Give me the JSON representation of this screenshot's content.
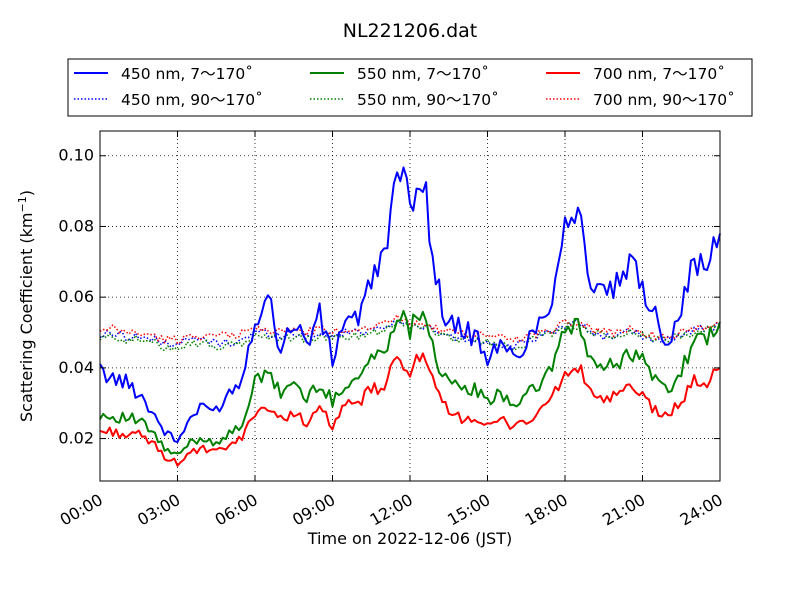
{
  "chart_data": {
    "type": "line",
    "title": "NL221206.dat",
    "xlabel": "Time on 2022-12-06 (JST)",
    "ylabel_main": "Scattering Coefficient (km",
    "ylabel_sup": "−1",
    "ylabel_end": ")",
    "xlim": [
      0,
      24
    ],
    "ylim": [
      0.008,
      0.107
    ],
    "x_ticks": [
      {
        "value": 0,
        "label": "00:00"
      },
      {
        "value": 3,
        "label": "03:00"
      },
      {
        "value": 6,
        "label": "06:00"
      },
      {
        "value": 9,
        "label": "09:00"
      },
      {
        "value": 12,
        "label": "12:00"
      },
      {
        "value": 15,
        "label": "15:00"
      },
      {
        "value": 18,
        "label": "18:00"
      },
      {
        "value": 21,
        "label": "21:00"
      },
      {
        "value": 24,
        "label": "24:00"
      }
    ],
    "y_ticks": [
      {
        "value": 0.02,
        "label": "0.02"
      },
      {
        "value": 0.04,
        "label": "0.04"
      },
      {
        "value": 0.06,
        "label": "0.06"
      },
      {
        "value": 0.08,
        "label": "0.08"
      },
      {
        "value": 0.1,
        "label": "0.10"
      }
    ],
    "grid": true,
    "legend_position": "top, above plot, 3 columns",
    "x_hours": [
      0,
      0.5,
      1,
      1.5,
      2,
      2.5,
      3,
      3.5,
      4,
      4.5,
      5,
      5.5,
      6,
      6.5,
      7,
      7.5,
      8,
      8.5,
      9,
      9.5,
      10,
      10.5,
      11,
      11.5,
      12,
      12.5,
      13,
      13.5,
      14,
      14.5,
      15,
      15.5,
      16,
      16.5,
      17,
      17.5,
      18,
      18.5,
      19,
      19.5,
      20,
      20.5,
      21,
      21.5,
      22,
      22.5,
      23,
      23.5,
      24
    ],
    "series": [
      {
        "name": "450 nm, 7～170˚",
        "color": "#0000ff",
        "style": "solid",
        "values": [
          0.039,
          0.037,
          0.036,
          0.033,
          0.028,
          0.022,
          0.019,
          0.026,
          0.029,
          0.028,
          0.033,
          0.037,
          0.054,
          0.06,
          0.046,
          0.053,
          0.047,
          0.055,
          0.042,
          0.055,
          0.054,
          0.064,
          0.073,
          0.094,
          0.088,
          0.095,
          0.065,
          0.052,
          0.051,
          0.049,
          0.043,
          0.046,
          0.043,
          0.047,
          0.053,
          0.06,
          0.082,
          0.085,
          0.064,
          0.06,
          0.063,
          0.069,
          0.063,
          0.055,
          0.047,
          0.058,
          0.07,
          0.068,
          0.078
        ]
      },
      {
        "name": "550 nm, 7～170˚",
        "color": "#008000",
        "style": "solid",
        "values": [
          0.027,
          0.026,
          0.026,
          0.025,
          0.022,
          0.017,
          0.015,
          0.019,
          0.02,
          0.019,
          0.021,
          0.024,
          0.036,
          0.038,
          0.033,
          0.036,
          0.031,
          0.036,
          0.03,
          0.036,
          0.037,
          0.043,
          0.044,
          0.056,
          0.051,
          0.058,
          0.043,
          0.035,
          0.034,
          0.034,
          0.03,
          0.033,
          0.03,
          0.032,
          0.035,
          0.041,
          0.05,
          0.053,
          0.042,
          0.04,
          0.041,
          0.045,
          0.042,
          0.037,
          0.033,
          0.04,
          0.047,
          0.048,
          0.053
        ]
      },
      {
        "name": "700 nm, 7～170˚",
        "color": "#ff0000",
        "style": "solid",
        "values": [
          0.022,
          0.022,
          0.021,
          0.021,
          0.019,
          0.015,
          0.013,
          0.016,
          0.017,
          0.016,
          0.018,
          0.02,
          0.028,
          0.029,
          0.025,
          0.028,
          0.024,
          0.028,
          0.024,
          0.029,
          0.03,
          0.034,
          0.034,
          0.043,
          0.04,
          0.043,
          0.033,
          0.027,
          0.026,
          0.026,
          0.023,
          0.025,
          0.024,
          0.025,
          0.027,
          0.032,
          0.038,
          0.04,
          0.033,
          0.031,
          0.032,
          0.034,
          0.032,
          0.028,
          0.026,
          0.031,
          0.036,
          0.036,
          0.04
        ]
      },
      {
        "name": "450 nm, 90～170˚",
        "color": "#0000ff",
        "style": "dotted",
        "values": [
          0.049,
          0.05,
          0.049,
          0.049,
          0.048,
          0.047,
          0.047,
          0.048,
          0.048,
          0.047,
          0.047,
          0.048,
          0.05,
          0.05,
          0.049,
          0.05,
          0.049,
          0.05,
          0.049,
          0.05,
          0.05,
          0.051,
          0.052,
          0.053,
          0.052,
          0.052,
          0.05,
          0.049,
          0.048,
          0.048,
          0.047,
          0.047,
          0.046,
          0.047,
          0.049,
          0.05,
          0.052,
          0.053,
          0.05,
          0.049,
          0.049,
          0.05,
          0.049,
          0.048,
          0.048,
          0.049,
          0.051,
          0.051,
          0.052
        ]
      },
      {
        "name": "550 nm, 90～170˚",
        "color": "#008000",
        "style": "dotted",
        "values": [
          0.048,
          0.049,
          0.048,
          0.048,
          0.047,
          0.046,
          0.046,
          0.047,
          0.047,
          0.046,
          0.046,
          0.047,
          0.049,
          0.049,
          0.048,
          0.049,
          0.048,
          0.049,
          0.048,
          0.049,
          0.049,
          0.05,
          0.051,
          0.053,
          0.052,
          0.052,
          0.05,
          0.049,
          0.048,
          0.048,
          0.047,
          0.047,
          0.046,
          0.047,
          0.049,
          0.05,
          0.052,
          0.052,
          0.05,
          0.049,
          0.049,
          0.05,
          0.049,
          0.048,
          0.048,
          0.049,
          0.05,
          0.051,
          0.052
        ]
      },
      {
        "name": "700 nm, 90～170˚",
        "color": "#ff0000",
        "style": "dotted",
        "values": [
          0.05,
          0.051,
          0.05,
          0.05,
          0.049,
          0.048,
          0.048,
          0.049,
          0.049,
          0.049,
          0.049,
          0.05,
          0.051,
          0.051,
          0.05,
          0.051,
          0.05,
          0.051,
          0.05,
          0.051,
          0.051,
          0.052,
          0.053,
          0.054,
          0.053,
          0.053,
          0.051,
          0.05,
          0.05,
          0.049,
          0.049,
          0.049,
          0.048,
          0.049,
          0.05,
          0.051,
          0.053,
          0.053,
          0.051,
          0.05,
          0.05,
          0.051,
          0.05,
          0.049,
          0.049,
          0.05,
          0.051,
          0.052,
          0.053
        ]
      }
    ]
  }
}
